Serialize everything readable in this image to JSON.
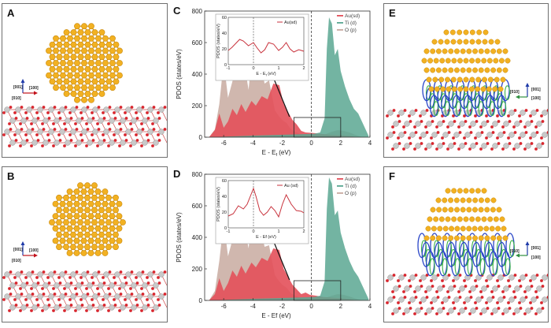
{
  "panels": {
    "A": {
      "letter": "A",
      "dirs": [
        "[001]",
        "[010]",
        "[100]"
      ]
    },
    "B": {
      "letter": "B",
      "dirs": [
        "[001]",
        "[010]",
        "[100]"
      ]
    },
    "E": {
      "letter": "E",
      "dirs": [
        "[001]",
        "[010]",
        "[100]"
      ]
    },
    "F": {
      "letter": "F",
      "dirs": [
        "[001]",
        "[010]",
        "[100]"
      ]
    }
  },
  "colors": {
    "gold": "#f2b122",
    "gold_dark": "#c98a0e",
    "oxygen": "#d8262e",
    "titanium": "#c9c9c9",
    "au_fill": "#e3505a",
    "ti_fill": "#5aa792",
    "o_fill": "#c8aaa0",
    "density_blue": "#2a46c8",
    "density_green": "#3db34a"
  },
  "chart_data": [
    {
      "panel": "C",
      "type": "area",
      "xlabel": "E - E",
      "xlabel_sub": "f",
      "xlabel_unit": " (eV)",
      "ylabel": "PDOS (states/eV)",
      "xlim": [
        -7.3,
        4.0
      ],
      "ylim": [
        0,
        800
      ],
      "xticks": [
        -6,
        -4,
        -2,
        0,
        2,
        4
      ],
      "yticks": [
        0,
        200,
        400,
        600,
        800
      ],
      "legend": [
        "Au(sd)",
        "Ti (d)",
        "O (p)"
      ],
      "series": [
        {
          "name": "O (p)",
          "x": [
            -7.0,
            -6.6,
            -6.3,
            -6.0,
            -5.7,
            -5.3,
            -5.0,
            -4.7,
            -4.3,
            -4.0,
            -3.6,
            -3.2,
            -2.9,
            -2.5,
            -2.2,
            -2.0,
            -1.7,
            -1.4,
            -1.0,
            -0.6,
            -0.2,
            0.2,
            0.6,
            1.0,
            1.4,
            1.8,
            2.2,
            2.6,
            3.0,
            3.5
          ],
          "y": [
            0,
            50,
            210,
            480,
            250,
            390,
            370,
            530,
            300,
            590,
            500,
            340,
            360,
            170,
            130,
            110,
            90,
            50,
            30,
            12,
            8,
            6,
            8,
            20,
            35,
            45,
            40,
            30,
            15,
            0
          ]
        },
        {
          "name": "Au(sd)",
          "x": [
            -7.0,
            -6.6,
            -6.3,
            -6.0,
            -5.7,
            -5.4,
            -5.1,
            -4.8,
            -4.5,
            -4.1,
            -3.8,
            -3.4,
            -3.0,
            -2.6,
            -2.2,
            -1.9,
            -1.6,
            -1.3,
            -1.0,
            -0.7,
            -0.4,
            -0.1,
            0.3,
            0.8,
            1.3,
            2.0,
            2.6,
            3.2
          ],
          "y": [
            0,
            45,
            150,
            60,
            100,
            180,
            140,
            210,
            160,
            230,
            200,
            260,
            240,
            340,
            330,
            210,
            160,
            110,
            80,
            40,
            30,
            28,
            25,
            20,
            15,
            12,
            8,
            0
          ]
        },
        {
          "name": "Ti (d)",
          "x": [
            -7.0,
            -4.0,
            -1.0,
            0.2,
            0.6,
            0.9,
            1.05,
            1.2,
            1.4,
            1.6,
            1.8,
            2.0,
            2.3,
            2.6,
            2.9,
            3.2,
            3.5,
            3.9
          ],
          "y": [
            0,
            10,
            18,
            22,
            30,
            120,
            560,
            760,
            720,
            520,
            560,
            420,
            320,
            240,
            180,
            150,
            90,
            10
          ]
        }
      ],
      "inset": {
        "legend": "Au(sd)",
        "ylabel": "PDOS (states/eV)",
        "xlabel": "E - E",
        "xlabel_sub": "f",
        "xlabel_unit": " (eV)",
        "xlim": [
          -1,
          2
        ],
        "ylim": [
          0,
          60
        ],
        "xticks": [
          -1,
          0,
          1,
          2
        ],
        "yticks": [
          0,
          20,
          40,
          60
        ],
        "x": [
          -1.0,
          -0.85,
          -0.7,
          -0.55,
          -0.4,
          -0.2,
          0.0,
          0.15,
          0.3,
          0.45,
          0.6,
          0.8,
          1.0,
          1.15,
          1.3,
          1.45,
          1.6,
          1.8,
          2.0
        ],
        "y": [
          18,
          22,
          27,
          32,
          30,
          24,
          28,
          21,
          15,
          19,
          28,
          26,
          18,
          22,
          28,
          20,
          16,
          19,
          17
        ]
      }
    },
    {
      "panel": "D",
      "type": "area",
      "xlabel": "E - Ef (eV)",
      "ylabel": "PDOS (states/eV)",
      "xlim": [
        -7.3,
        4.0
      ],
      "ylim": [
        0,
        800
      ],
      "xticks": [
        -6,
        -4,
        -2,
        0,
        2,
        4
      ],
      "yticks": [
        0,
        200,
        400,
        600,
        800
      ],
      "legend": [
        "Au(sd)",
        "Ti (d)",
        "O (p)"
      ],
      "series": [
        {
          "name": "O (p)",
          "x": [
            -7.0,
            -6.6,
            -6.3,
            -6.0,
            -5.7,
            -5.3,
            -5.0,
            -4.7,
            -4.3,
            -4.0,
            -3.6,
            -3.2,
            -2.9,
            -2.5,
            -2.2,
            -2.0,
            -1.7,
            -1.4,
            -1.0,
            -0.6,
            -0.2,
            0.2,
            0.6,
            1.0,
            1.4,
            1.8,
            2.2,
            2.6,
            3.0,
            3.5
          ],
          "y": [
            0,
            60,
            250,
            500,
            280,
            420,
            390,
            520,
            330,
            580,
            490,
            340,
            350,
            160,
            120,
            100,
            80,
            45,
            25,
            12,
            8,
            6,
            8,
            18,
            30,
            40,
            35,
            25,
            12,
            0
          ]
        },
        {
          "name": "Au(sd)",
          "x": [
            -7.0,
            -6.6,
            -6.3,
            -6.0,
            -5.7,
            -5.4,
            -5.1,
            -4.8,
            -4.5,
            -4.1,
            -3.8,
            -3.4,
            -3.0,
            -2.6,
            -2.2,
            -1.9,
            -1.6,
            -1.3,
            -1.0,
            -0.7,
            -0.4,
            -0.1,
            0.3,
            0.8,
            1.3,
            2.0,
            2.6,
            3.2
          ],
          "y": [
            0,
            40,
            140,
            60,
            110,
            190,
            150,
            220,
            170,
            240,
            210,
            270,
            250,
            330,
            320,
            200,
            150,
            100,
            70,
            40,
            50,
            35,
            30,
            22,
            18,
            14,
            8,
            0
          ]
        },
        {
          "name": "Ti (d)",
          "x": [
            -7.0,
            -4.0,
            -1.0,
            0.2,
            0.6,
            0.9,
            1.05,
            1.2,
            1.4,
            1.6,
            1.8,
            2.0,
            2.3,
            2.6,
            2.9,
            3.2,
            3.5,
            3.9
          ],
          "y": [
            0,
            10,
            18,
            22,
            30,
            120,
            580,
            780,
            740,
            540,
            570,
            430,
            330,
            250,
            190,
            150,
            90,
            10
          ]
        }
      ],
      "inset": {
        "legend": "Au (sd)",
        "ylabel": "PDOS (states/eV)",
        "xlabel": "E - Ef (eV)",
        "xlim": [
          -1,
          2
        ],
        "ylim": [
          0,
          60
        ],
        "xticks": [
          -1,
          0,
          1,
          2
        ],
        "yticks": [
          0,
          20,
          40,
          60
        ],
        "x": [
          -1.0,
          -0.8,
          -0.6,
          -0.4,
          -0.25,
          -0.1,
          0.0,
          0.1,
          0.25,
          0.4,
          0.55,
          0.7,
          0.85,
          1.0,
          1.15,
          1.3,
          1.5,
          1.7,
          1.9,
          2.0
        ],
        "y": [
          15,
          18,
          28,
          24,
          30,
          42,
          50,
          40,
          22,
          16,
          20,
          27,
          22,
          14,
          30,
          42,
          30,
          22,
          21,
          19
        ]
      }
    }
  ]
}
